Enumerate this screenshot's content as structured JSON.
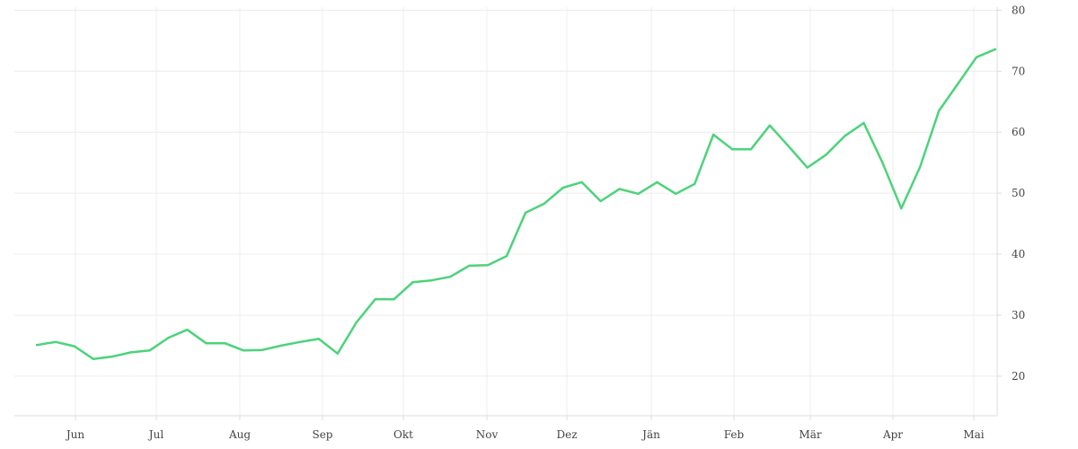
{
  "chart_data": {
    "type": "line",
    "title": "",
    "xlabel": "",
    "ylabel": "",
    "x_tick_labels": [
      "Jun",
      "Jul",
      "Aug",
      "Sep",
      "Okt",
      "Nov",
      "Dez",
      "Jän",
      "Feb",
      "Mär",
      "Apr",
      "Mai"
    ],
    "y_ticks": [
      20,
      30,
      40,
      50,
      60,
      70,
      80
    ],
    "ylim": [
      13.5,
      80.5
    ],
    "xlim_weeks": [
      -1.2,
      51.1
    ],
    "grid": true,
    "y_axis_side": "right",
    "color": "#4cd37a",
    "series": [
      {
        "x_weeks": [
          0,
          1,
          2,
          3,
          4,
          5,
          6,
          7,
          8,
          9,
          10,
          11,
          12,
          13,
          14,
          15,
          16,
          17,
          18,
          19,
          20,
          21,
          22,
          23,
          24,
          25,
          26,
          27,
          28,
          29,
          30,
          31,
          32,
          33,
          34,
          35,
          36,
          37,
          38,
          39,
          40,
          41,
          42,
          43,
          44,
          45,
          46,
          47,
          48,
          49,
          50,
          51
        ],
        "values": [
          25.1,
          25.6,
          24.9,
          22.8,
          23.2,
          23.9,
          24.2,
          26.3,
          27.6,
          25.4,
          25.4,
          24.2,
          24.3,
          25.0,
          25.6,
          26.1,
          23.7,
          28.8,
          32.6,
          32.6,
          35.4,
          35.7,
          36.3,
          38.1,
          38.2,
          39.7,
          46.8,
          48.3,
          50.9,
          51.8,
          48.7,
          50.7,
          49.9,
          51.8,
          49.9,
          51.5,
          59.6,
          57.2,
          57.2,
          61.1,
          57.7,
          54.2,
          56.3,
          59.4,
          61.5,
          55.0,
          47.5,
          54.3,
          63.5,
          67.9,
          72.3,
          73.6
        ]
      }
    ]
  }
}
